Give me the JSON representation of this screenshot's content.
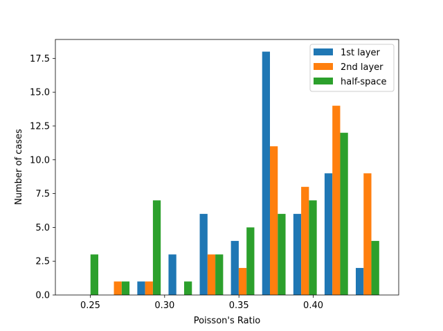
{
  "chart_data": {
    "type": "bar",
    "xlabel": "Poisson's Ratio",
    "ylabel": "Number of cases",
    "bin_centers": [
      0.2475,
      0.2685,
      0.2895,
      0.3105,
      0.3315,
      0.3525,
      0.3735,
      0.3945,
      0.4155,
      0.4365
    ],
    "bar_offset": 0.00525,
    "bar_width": 0.00525,
    "xlim": [
      0.2265,
      0.4575
    ],
    "ylim": [
      0,
      18.9
    ],
    "xticks": [
      0.25,
      0.3,
      0.35,
      0.4
    ],
    "xtick_labels": [
      "0.25",
      "0.30",
      "0.35",
      "0.40"
    ],
    "yticks": [
      0,
      2.5,
      5,
      7.5,
      10,
      12.5,
      15,
      17.5
    ],
    "ytick_labels": [
      "0.0",
      "2.5",
      "5.0",
      "7.5",
      "10.0",
      "12.5",
      "15.0",
      "17.5"
    ],
    "grid": false,
    "legend_position": "top-right",
    "series": [
      {
        "name": "1st layer",
        "color": "#1f77b4",
        "values": [
          0,
          0,
          1,
          3,
          6,
          4,
          18,
          6,
          9,
          2
        ]
      },
      {
        "name": "2nd layer",
        "color": "#ff7f0e",
        "values": [
          0,
          1,
          1,
          0,
          3,
          2,
          11,
          8,
          14,
          9
        ]
      },
      {
        "name": "half-space",
        "color": "#2ca02c",
        "values": [
          3,
          1,
          7,
          1,
          3,
          5,
          6,
          7,
          12,
          4
        ]
      }
    ]
  }
}
